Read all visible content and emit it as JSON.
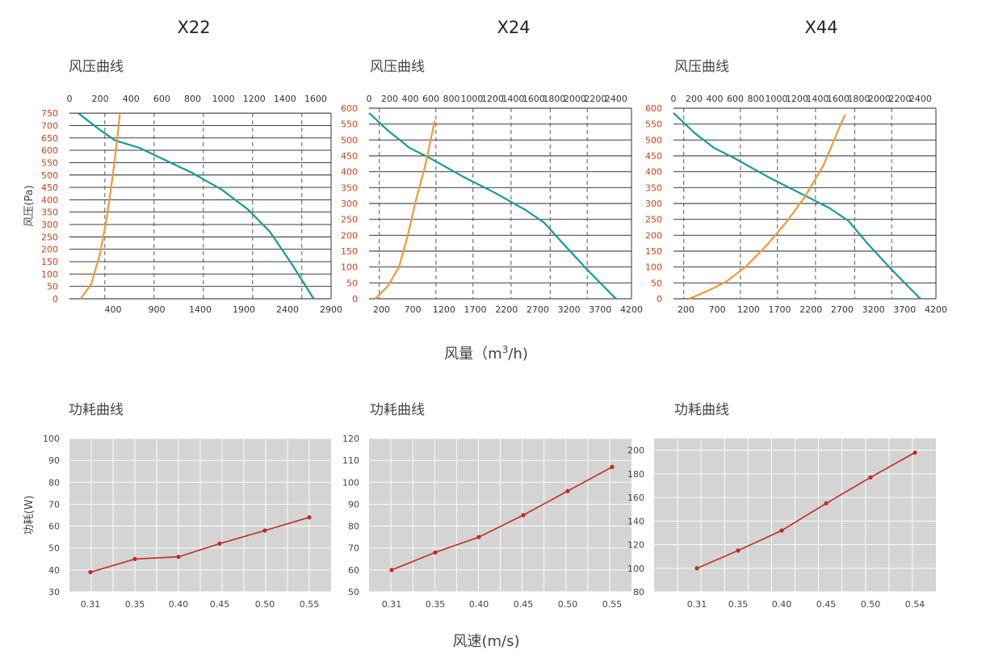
{
  "colors": {
    "pressure_tick": "#c8431f",
    "system_curve": "#ee9a3c",
    "fan_curve": "#129c96",
    "power_line": "#c42a22",
    "power_bg": "#d4d4d4"
  },
  "models": [
    "X22",
    "X24",
    "X44"
  ],
  "labels": {
    "pressure_section": "风压曲线",
    "power_section": "功耗曲线",
    "pressure_ylabel": "风压(Pa)",
    "power_ylabel": "功耗(W)",
    "airflow_xlabel_pre": "风量（m",
    "airflow_xlabel_sup": "3",
    "airflow_xlabel_post": "/h)",
    "speed_xlabel": "风速(m/s)"
  },
  "chart_data": [
    {
      "id": "x22-pressure",
      "type": "line",
      "model": "X22",
      "top_axis_ticks": [
        0,
        200,
        400,
        600,
        800,
        1000,
        1200,
        1400,
        1600
      ],
      "top_axis_range": [
        0,
        1700
      ],
      "x_ticks": [
        400,
        900,
        1400,
        1900,
        2400,
        2900
      ],
      "x_range": [
        -100,
        2900
      ],
      "y_ticks": [
        0,
        50,
        100,
        150,
        200,
        250,
        300,
        350,
        400,
        450,
        500,
        550,
        600,
        650,
        700,
        750
      ],
      "y_range": [
        0,
        770
      ],
      "vgrid_top": [
        230,
        550,
        870,
        1190,
        1510
      ],
      "series": [
        {
          "key": "fan",
          "points": [
            [
              0,
              750
            ],
            [
              220,
              690
            ],
            [
              420,
              640
            ],
            [
              700,
              610
            ],
            [
              1000,
              560
            ],
            [
              1300,
              510
            ],
            [
              1650,
              440
            ],
            [
              1950,
              360
            ],
            [
              2200,
              270
            ],
            [
              2450,
              140
            ],
            [
              2700,
              0
            ]
          ]
        },
        {
          "key": "system",
          "points": [
            [
              30,
              0
            ],
            [
              150,
              60
            ],
            [
              250,
              180
            ],
            [
              330,
              330
            ],
            [
              390,
              480
            ],
            [
              440,
              620
            ],
            [
              480,
              750
            ]
          ]
        }
      ]
    },
    {
      "id": "x24-pressure",
      "type": "line",
      "model": "X24",
      "top_axis_ticks": [
        0,
        200,
        400,
        600,
        800,
        1000,
        1200,
        1400,
        1600,
        1800,
        2000,
        2200,
        2400
      ],
      "top_axis_range": [
        0,
        2550
      ],
      "x_ticks": [
        200,
        700,
        1200,
        1700,
        2200,
        2700,
        3200,
        3700,
        4200
      ],
      "x_range": [
        0,
        4200
      ],
      "y_ticks": [
        0,
        50,
        100,
        150,
        200,
        250,
        300,
        350,
        400,
        450,
        500,
        550,
        600
      ],
      "y_range": [
        0,
        600
      ],
      "vgrid_top": [
        100,
        650,
        1010,
        1380,
        1760,
        2120
      ],
      "series": [
        {
          "key": "fan",
          "points": [
            [
              0,
              585
            ],
            [
              300,
              530
            ],
            [
              650,
              475
            ],
            [
              1000,
              440
            ],
            [
              1500,
              385
            ],
            [
              2000,
              335
            ],
            [
              2500,
              280
            ],
            [
              2800,
              240
            ],
            [
              3100,
              175
            ],
            [
              3500,
              90
            ],
            [
              3950,
              0
            ]
          ]
        },
        {
          "key": "system",
          "points": [
            [
              100,
              0
            ],
            [
              300,
              40
            ],
            [
              480,
              100
            ],
            [
              620,
              200
            ],
            [
              750,
              310
            ],
            [
              900,
              420
            ],
            [
              1050,
              560
            ]
          ]
        }
      ]
    },
    {
      "id": "x44-pressure",
      "type": "line",
      "model": "X44",
      "top_axis_ticks": [
        0,
        200,
        400,
        600,
        800,
        1000,
        1200,
        1400,
        1600,
        1800,
        2000,
        2200,
        2400
      ],
      "top_axis_range": [
        0,
        2550
      ],
      "x_ticks": [
        200,
        700,
        1200,
        1700,
        2200,
        2700,
        3200,
        3700,
        4200
      ],
      "x_range": [
        0,
        4200
      ],
      "y_ticks": [
        0,
        50,
        100,
        150,
        200,
        250,
        300,
        350,
        400,
        450,
        500,
        550,
        600
      ],
      "y_range": [
        0,
        600
      ],
      "vgrid_top": [
        100,
        650,
        1010,
        1380,
        1760,
        2120
      ],
      "series": [
        {
          "key": "fan",
          "points": [
            [
              0,
              585
            ],
            [
              350,
              520
            ],
            [
              650,
              475
            ],
            [
              1000,
              440
            ],
            [
              1500,
              385
            ],
            [
              2000,
              335
            ],
            [
              2500,
              285
            ],
            [
              2800,
              245
            ],
            [
              3100,
              175
            ],
            [
              3500,
              90
            ],
            [
              3950,
              0
            ]
          ]
        },
        {
          "key": "system",
          "points": [
            [
              250,
              0
            ],
            [
              550,
              25
            ],
            [
              850,
              55
            ],
            [
              1150,
              100
            ],
            [
              1500,
              170
            ],
            [
              1800,
              240
            ],
            [
              2100,
              320
            ],
            [
              2400,
              420
            ],
            [
              2700,
              560
            ],
            [
              2750,
              580
            ]
          ]
        }
      ]
    },
    {
      "id": "x22-power",
      "type": "line",
      "model": "X22",
      "categories": [
        "0.31",
        "0.35",
        "0.40",
        "0.45",
        "0.50",
        "0.55"
      ],
      "values": [
        39,
        45,
        46,
        52,
        58,
        64
      ],
      "y_ticks": [
        30,
        40,
        50,
        60,
        70,
        80,
        90,
        100
      ],
      "y_range": [
        30,
        100
      ]
    },
    {
      "id": "x24-power",
      "type": "line",
      "model": "X24",
      "categories": [
        "0.31",
        "0.35",
        "0.40",
        "0.45",
        "0.50",
        "0.55"
      ],
      "values": [
        60,
        68,
        75,
        85,
        96,
        107
      ],
      "y_ticks": [
        50,
        60,
        70,
        80,
        90,
        100,
        110,
        120
      ],
      "y_range": [
        50,
        120
      ]
    },
    {
      "id": "x44-power",
      "type": "line",
      "model": "X44",
      "categories": [
        "0.31",
        "0.35",
        "0.40",
        "0.45",
        "0.50",
        "0.54"
      ],
      "values": [
        100,
        115,
        132,
        155,
        177,
        198
      ],
      "y_ticks": [
        80,
        100,
        120,
        140,
        160,
        180,
        200
      ],
      "y_range": [
        80,
        210
      ]
    }
  ]
}
